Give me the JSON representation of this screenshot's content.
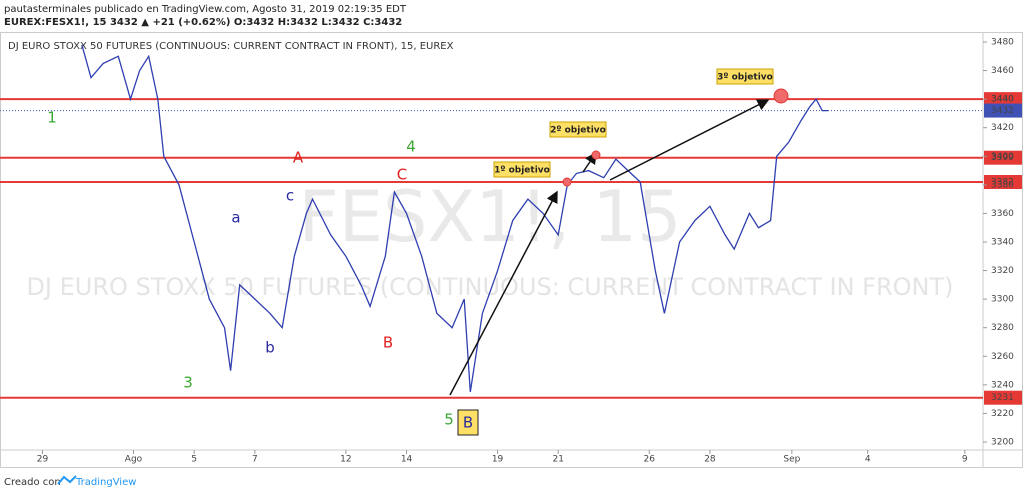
{
  "header": {
    "line1": "pautasterminales publicado en TradingView.com, Agosto 31, 2019 02:19:35 EDT",
    "line2": "EUREX:FESX1!, 15 3432 ▲ +21 (+0.62%) O:3432 H:3432 L:3432 C:3432"
  },
  "footer": {
    "prefix": "Creado con",
    "brand": "TradingView"
  },
  "chart_data": {
    "type": "line",
    "title": "DJ EURO STOXX 50 FUTURES (CONTINUOUS: CURRENT CONTRACT IN FRONT), 15, EUREX",
    "watermark": "FESX1!, 15",
    "watermark_subtitle": "DJ EURO STOXX 50 FUTURES (CONTINUOUS: CURRENT CONTRACT IN FRONT)",
    "series": [
      {
        "name": "FESX1!",
        "color": "#2f3fb0",
        "x": [
          1.3,
          1.6,
          2,
          2.5,
          2.9,
          3.2,
          3.5,
          3.8,
          4,
          4.5,
          5,
          5.5,
          6,
          6.2,
          6.5,
          7,
          7.5,
          7.9,
          8.3,
          8.7,
          8.9,
          9.5,
          10,
          10.5,
          10.8,
          11.3,
          11.6,
          12,
          12.5,
          13,
          13.5,
          13.9,
          14.1,
          14.5,
          15,
          15.5,
          16,
          16.5,
          17,
          17.3,
          17.6,
          18,
          18.5,
          18.9,
          19.3,
          19.7,
          20.2,
          20.5,
          21,
          21.5,
          22,
          22.5,
          22.8,
          23.3,
          23.6,
          24,
          24.2,
          24.6,
          25,
          25.3,
          25.5,
          25.7,
          25.9
        ],
        "values": [
          3478,
          3455,
          3465,
          3470,
          3440,
          3460,
          3470,
          3440,
          3400,
          3380,
          3340,
          3300,
          3280,
          3250,
          3310,
          3300,
          3290,
          3280,
          3330,
          3360,
          3370,
          3345,
          3330,
          3310,
          3295,
          3330,
          3375,
          3360,
          3330,
          3290,
          3280,
          3300,
          3235,
          3290,
          3320,
          3355,
          3370,
          3360,
          3345,
          3380,
          3388,
          3390,
          3385,
          3398,
          3390,
          3382,
          3320,
          3290,
          3340,
          3355,
          3365,
          3345,
          3335,
          3360,
          3350,
          3355,
          3400,
          3410,
          3425,
          3435,
          3440,
          3432,
          3432
        ]
      }
    ],
    "levels": [
      3440,
      3399,
      3382,
      3231
    ],
    "level_color": "#e53935",
    "last_price": 3432,
    "last_price_color": "#3f51b5",
    "xlim": [
      -1.4,
      31
    ],
    "xticks": [
      {
        "value": 0,
        "label": "29"
      },
      {
        "value": 3,
        "label": "Ago"
      },
      {
        "value": 5,
        "label": "5"
      },
      {
        "value": 7,
        "label": "7"
      },
      {
        "value": 10,
        "label": "12"
      },
      {
        "value": 12,
        "label": "14"
      },
      {
        "value": 15,
        "label": "19"
      },
      {
        "value": 17,
        "label": "21"
      },
      {
        "value": 20,
        "label": "26"
      },
      {
        "value": 22,
        "label": "28"
      },
      {
        "value": 24.7,
        "label": "Sep"
      },
      {
        "value": 27.2,
        "label": "4"
      },
      {
        "value": 30.4,
        "label": "9"
      }
    ],
    "ylim": [
      3194.4,
      3486.3
    ],
    "yticks": [
      3200,
      3220,
      3240,
      3260,
      3280,
      3300,
      3320,
      3340,
      3360,
      3380,
      3400,
      3420,
      3440,
      3460,
      3480
    ],
    "annotations": [
      {
        "text": "1",
        "color": "#3aa832"
      },
      {
        "text": "A",
        "color": "#e02020"
      },
      {
        "text": "C",
        "color": "#e02020"
      },
      {
        "text": "4",
        "color": "#3aa832"
      },
      {
        "text": "a",
        "color": "#2a2aa0"
      },
      {
        "text": "c",
        "color": "#2a2aa0"
      },
      {
        "text": "b",
        "color": "#2a2aa0"
      },
      {
        "text": "B",
        "color": "#e02020"
      },
      {
        "text": "3",
        "color": "#3aa832"
      },
      {
        "text": "5",
        "color": "#3aa832"
      },
      {
        "text": "B",
        "color": "#2a2aa0"
      },
      {
        "text": "1º objetivo",
        "color": "#222222"
      },
      {
        "text": "2º objetivo",
        "color": "#222222"
      },
      {
        "text": "3º objetivo",
        "color": "#222222"
      }
    ]
  }
}
